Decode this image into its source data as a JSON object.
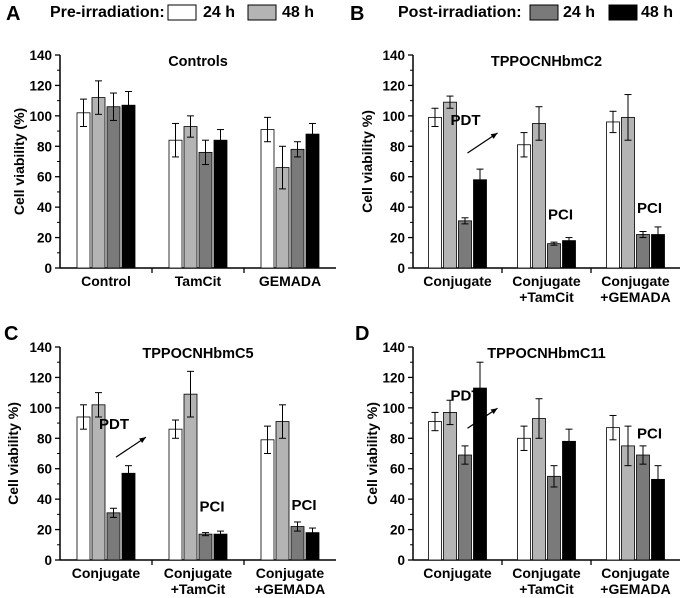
{
  "legend": {
    "pre": {
      "label": "Pre-irradiation:",
      "items": [
        {
          "name": "24 h",
          "color": "#ffffff"
        },
        {
          "name": "48 h",
          "color": "#b4b4b4"
        }
      ]
    },
    "post": {
      "label": "Post-irradiation:",
      "items": [
        {
          "name": "24 h",
          "color": "#7a7a7a"
        },
        {
          "name": "48 h",
          "color": "#000000"
        }
      ]
    }
  },
  "series_colors": [
    "#ffffff",
    "#b4b4b4",
    "#7a7a7a",
    "#000000"
  ],
  "chart_data": [
    {
      "panel": "A",
      "type": "bar",
      "title": "Controls",
      "ylabel": "Cell viability (%)",
      "ylim": [
        0,
        140
      ],
      "yticks": [
        0,
        20,
        40,
        60,
        80,
        100,
        120,
        140
      ],
      "categories": [
        [
          "Control"
        ],
        [
          "TamCit"
        ],
        [
          "GEMADA"
        ]
      ],
      "series": [
        {
          "name": "Pre-irradiation 24 h",
          "values": [
            102,
            84,
            91
          ],
          "errors": [
            9,
            11,
            8
          ]
        },
        {
          "name": "Pre-irradiation 48 h",
          "values": [
            112,
            93,
            66
          ],
          "errors": [
            11,
            7,
            14
          ]
        },
        {
          "name": "Post-irradiation 24 h",
          "values": [
            106,
            76,
            78
          ],
          "errors": [
            9,
            8,
            5
          ]
        },
        {
          "name": "Post-irradiation 48 h",
          "values": [
            107,
            84,
            88
          ],
          "errors": [
            9,
            7,
            7
          ]
        }
      ],
      "annotations": []
    },
    {
      "panel": "B",
      "type": "bar",
      "title": "TPPOCNHbmC2",
      "ylabel": "Cell viability %)",
      "ylim": [
        0,
        140
      ],
      "yticks": [
        0,
        20,
        40,
        60,
        80,
        100,
        120,
        140
      ],
      "categories": [
        [
          "Conjugate"
        ],
        [
          "Conjugate",
          "+TamCit"
        ],
        [
          "Conjugate",
          "+GEMADA"
        ]
      ],
      "series": [
        {
          "name": "Pre-irradiation 24 h",
          "values": [
            99,
            81,
            96
          ],
          "errors": [
            6,
            8,
            7
          ]
        },
        {
          "name": "Pre-irradiation 48 h",
          "values": [
            109,
            95,
            99
          ],
          "errors": [
            4,
            11,
            15
          ]
        },
        {
          "name": "Post-irradiation 24 h",
          "values": [
            31,
            16,
            22
          ],
          "errors": [
            2,
            1,
            2
          ]
        },
        {
          "name": "Post-irradiation 48 h",
          "values": [
            58,
            18,
            22
          ],
          "errors": [
            7,
            2,
            5
          ]
        }
      ],
      "annotations": [
        {
          "text": "PDT",
          "group": 0,
          "value": 94,
          "arrow": true
        },
        {
          "text": "PCI",
          "group": 1,
          "value": 32
        },
        {
          "text": "PCI",
          "group": 2,
          "value": 36
        }
      ]
    },
    {
      "panel": "C",
      "type": "bar",
      "title": "TPPOCNHbmC5",
      "ylabel": "Cell viability %)",
      "ylim": [
        0,
        140
      ],
      "yticks": [
        0,
        20,
        40,
        60,
        80,
        100,
        120,
        140
      ],
      "categories": [
        [
          "Conjugate"
        ],
        [
          "Conjugate",
          "+TamCit"
        ],
        [
          "Conjugate",
          "+GEMADA"
        ]
      ],
      "series": [
        {
          "name": "Pre-irradiation 24 h",
          "values": [
            94,
            86,
            79
          ],
          "errors": [
            8,
            6,
            9
          ]
        },
        {
          "name": "Pre-irradiation 48 h",
          "values": [
            102,
            109,
            91
          ],
          "errors": [
            8,
            15,
            11
          ]
        },
        {
          "name": "Post-irradiation 24 h",
          "values": [
            31,
            17,
            22
          ],
          "errors": [
            3,
            1,
            3
          ]
        },
        {
          "name": "Post-irradiation 48 h",
          "values": [
            57,
            17,
            18
          ],
          "errors": [
            5,
            2,
            3
          ]
        }
      ],
      "annotations": [
        {
          "text": "PDT",
          "group": 0,
          "value": 86,
          "arrow": true
        },
        {
          "text": "PCI",
          "group": 1,
          "value": 32
        },
        {
          "text": "PCI",
          "group": 2,
          "value": 33
        }
      ]
    },
    {
      "panel": "D",
      "type": "bar",
      "title": "TPPOCNHbmC11",
      "ylabel": "Cell viability %)",
      "ylim": [
        0,
        140
      ],
      "yticks": [
        0,
        20,
        40,
        60,
        80,
        100,
        120,
        140
      ],
      "categories": [
        [
          "Conjugate"
        ],
        [
          "Conjugate",
          "+TamCit"
        ],
        [
          "Conjugate",
          "+GEMADA"
        ]
      ],
      "series": [
        {
          "name": "Pre-irradiation 24 h",
          "values": [
            91,
            80,
            87
          ],
          "errors": [
            6,
            8,
            8
          ]
        },
        {
          "name": "Pre-irradiation 48 h",
          "values": [
            97,
            93,
            75
          ],
          "errors": [
            8,
            13,
            13
          ]
        },
        {
          "name": "Post-irradiation 24 h",
          "values": [
            69,
            55,
            69
          ],
          "errors": [
            6,
            7,
            6
          ]
        },
        {
          "name": "Post-irradiation 48 h",
          "values": [
            113,
            78,
            53
          ],
          "errors": [
            17,
            8,
            9
          ]
        }
      ],
      "annotations": [
        {
          "text": "PDT",
          "group": 0,
          "value": 105,
          "arrow": true
        },
        {
          "text": "PCI",
          "group": 2,
          "value": 80
        }
      ]
    }
  ]
}
